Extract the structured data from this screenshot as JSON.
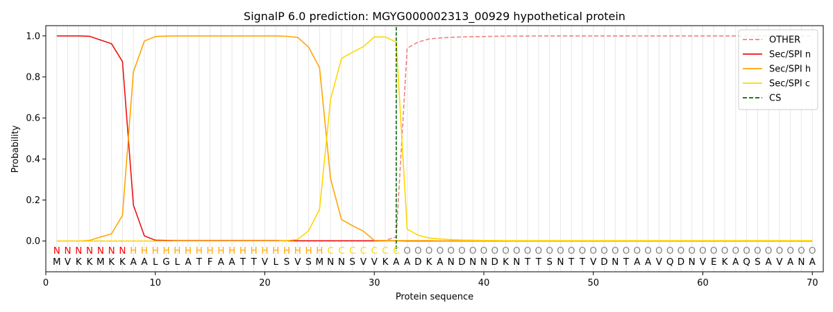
{
  "chart_data": {
    "type": "line",
    "title": "SignalP 6.0 prediction: MGYG000002313_00929 hypothetical protein",
    "xlabel": "Protein sequence",
    "ylabel": "Probability",
    "xlim": [
      0,
      71
    ],
    "ylim": [
      -0.15,
      1.05
    ],
    "xticks": [
      0,
      10,
      20,
      30,
      40,
      50,
      60,
      70
    ],
    "yticks": [
      0.0,
      0.2,
      0.4,
      0.6,
      0.8,
      1.0
    ],
    "legend_position": "top-right",
    "sequence": [
      "M",
      "V",
      "K",
      "K",
      "M",
      "K",
      "K",
      "A",
      "A",
      "L",
      "G",
      "L",
      "A",
      "T",
      "F",
      "A",
      "A",
      "T",
      "T",
      "V",
      "L",
      "S",
      "V",
      "S",
      "M",
      "N",
      "N",
      "S",
      "V",
      "V",
      "K",
      "A",
      "A",
      "D",
      "K",
      "A",
      "N",
      "D",
      "N",
      "N",
      "D",
      "K",
      "N",
      "T",
      "T",
      "S",
      "N",
      "T",
      "T",
      "V",
      "D",
      "N",
      "T",
      "A",
      "A",
      "V",
      "Q",
      "D",
      "N",
      "V",
      "E",
      "K",
      "A",
      "Q",
      "S",
      "A",
      "V",
      "A",
      "N",
      "A"
    ],
    "region_labels": [
      "N",
      "N",
      "N",
      "N",
      "N",
      "N",
      "N",
      "H",
      "H",
      "H",
      "H",
      "H",
      "H",
      "H",
      "H",
      "H",
      "H",
      "H",
      "H",
      "H",
      "H",
      "H",
      "H",
      "H",
      "H",
      "C",
      "C",
      "C",
      "C",
      "C",
      "C",
      "C",
      "O",
      "O",
      "O",
      "O",
      "O",
      "O",
      "O",
      "O",
      "O",
      "O",
      "O",
      "O",
      "O",
      "O",
      "O",
      "O",
      "O",
      "O",
      "O",
      "O",
      "O",
      "O",
      "O",
      "O",
      "O",
      "O",
      "O",
      "O",
      "O",
      "O",
      "O",
      "O",
      "O",
      "O",
      "O",
      "O",
      "O",
      "O"
    ],
    "region_colors": {
      "N": "#ff0000",
      "H": "#ffa500",
      "C": "#ffd700",
      "O": "#808080"
    },
    "cleavage_site": 32,
    "series": [
      {
        "name": "OTHER",
        "color": "#f08080",
        "style": "dashed",
        "values": [
          0,
          0,
          0,
          0,
          0,
          0,
          0,
          0,
          0,
          0,
          0,
          0,
          0,
          0,
          0,
          0,
          0,
          0,
          0,
          0,
          0,
          0,
          0,
          0,
          0,
          0,
          0,
          0,
          0,
          0,
          0.003,
          0.02,
          0.94,
          0.97,
          0.985,
          0.99,
          0.993,
          0.995,
          0.996,
          0.997,
          0.998,
          0.999,
          0.999,
          0.999,
          1,
          1,
          1,
          1,
          1,
          1,
          1,
          1,
          1,
          1,
          1,
          1,
          1,
          1,
          1,
          1,
          1,
          1,
          1,
          1,
          1,
          1,
          1,
          1,
          1,
          1
        ]
      },
      {
        "name": "Sec/SPI n",
        "color": "#ee1111",
        "style": "solid",
        "values": [
          1.0,
          1.0,
          1.0,
          0.998,
          0.98,
          0.962,
          0.875,
          0.175,
          0.025,
          0.004,
          0.003,
          0.002,
          0.002,
          0.002,
          0.002,
          0.002,
          0.002,
          0.002,
          0.002,
          0.002,
          0.002,
          0.002,
          0.001,
          0.001,
          0.001,
          0.001,
          0.001,
          0.001,
          0.001,
          0.001,
          0.001,
          0.001,
          0,
          0,
          0,
          0,
          0,
          0,
          0,
          0,
          0,
          0,
          0,
          0,
          0,
          0,
          0,
          0,
          0,
          0,
          0,
          0,
          0,
          0,
          0,
          0,
          0,
          0,
          0,
          0,
          0,
          0,
          0,
          0,
          0,
          0,
          0,
          0,
          0,
          0
        ]
      },
      {
        "name": "Sec/SPI h",
        "color": "#ffa500",
        "style": "solid",
        "values": [
          0,
          0,
          0,
          0.003,
          0.02,
          0.035,
          0.125,
          0.825,
          0.975,
          0.997,
          0.999,
          1,
          1,
          1,
          1,
          1,
          1,
          1,
          1,
          1,
          1,
          0.998,
          0.993,
          0.945,
          0.845,
          0.305,
          0.105,
          0.075,
          0.048,
          0.003,
          0.002,
          0.002,
          0.002,
          0.002,
          0.002,
          0.001,
          0.001,
          0.001,
          0.001,
          0.001,
          0.001,
          0.001,
          0.001,
          0.001,
          0.001,
          0.001,
          0.001,
          0.001,
          0.001,
          0.001,
          0.001,
          0.001,
          0.001,
          0.001,
          0.001,
          0.001,
          0.001,
          0.001,
          0.001,
          0.001,
          0.001,
          0.001,
          0.001,
          0.001,
          0.001,
          0.001,
          0.001,
          0.001,
          0.001,
          0.001
        ]
      },
      {
        "name": "Sec/SPI c",
        "color": "#ffd700",
        "style": "solid",
        "values": [
          0,
          0,
          0,
          0,
          0,
          0,
          0,
          0,
          0,
          0,
          0,
          0,
          0,
          0,
          0,
          0,
          0,
          0,
          0,
          0,
          0,
          0.002,
          0.008,
          0.05,
          0.155,
          0.69,
          0.89,
          0.92,
          0.948,
          0.995,
          0.995,
          0.97,
          0.058,
          0.028,
          0.015,
          0.01,
          0.007,
          0.005,
          0.004,
          0.003,
          0.003,
          0.002,
          0.002,
          0.002,
          0.002,
          0.002,
          0.002,
          0.002,
          0.002,
          0.002,
          0.002,
          0.002,
          0.002,
          0.002,
          0.002,
          0.002,
          0.002,
          0.002,
          0.002,
          0.002,
          0.002,
          0.002,
          0.002,
          0.002,
          0.002,
          0.002,
          0.002,
          0.002,
          0.002,
          0.002
        ]
      },
      {
        "name": "CS",
        "color": "#006400",
        "style": "dashed",
        "values": []
      }
    ]
  }
}
